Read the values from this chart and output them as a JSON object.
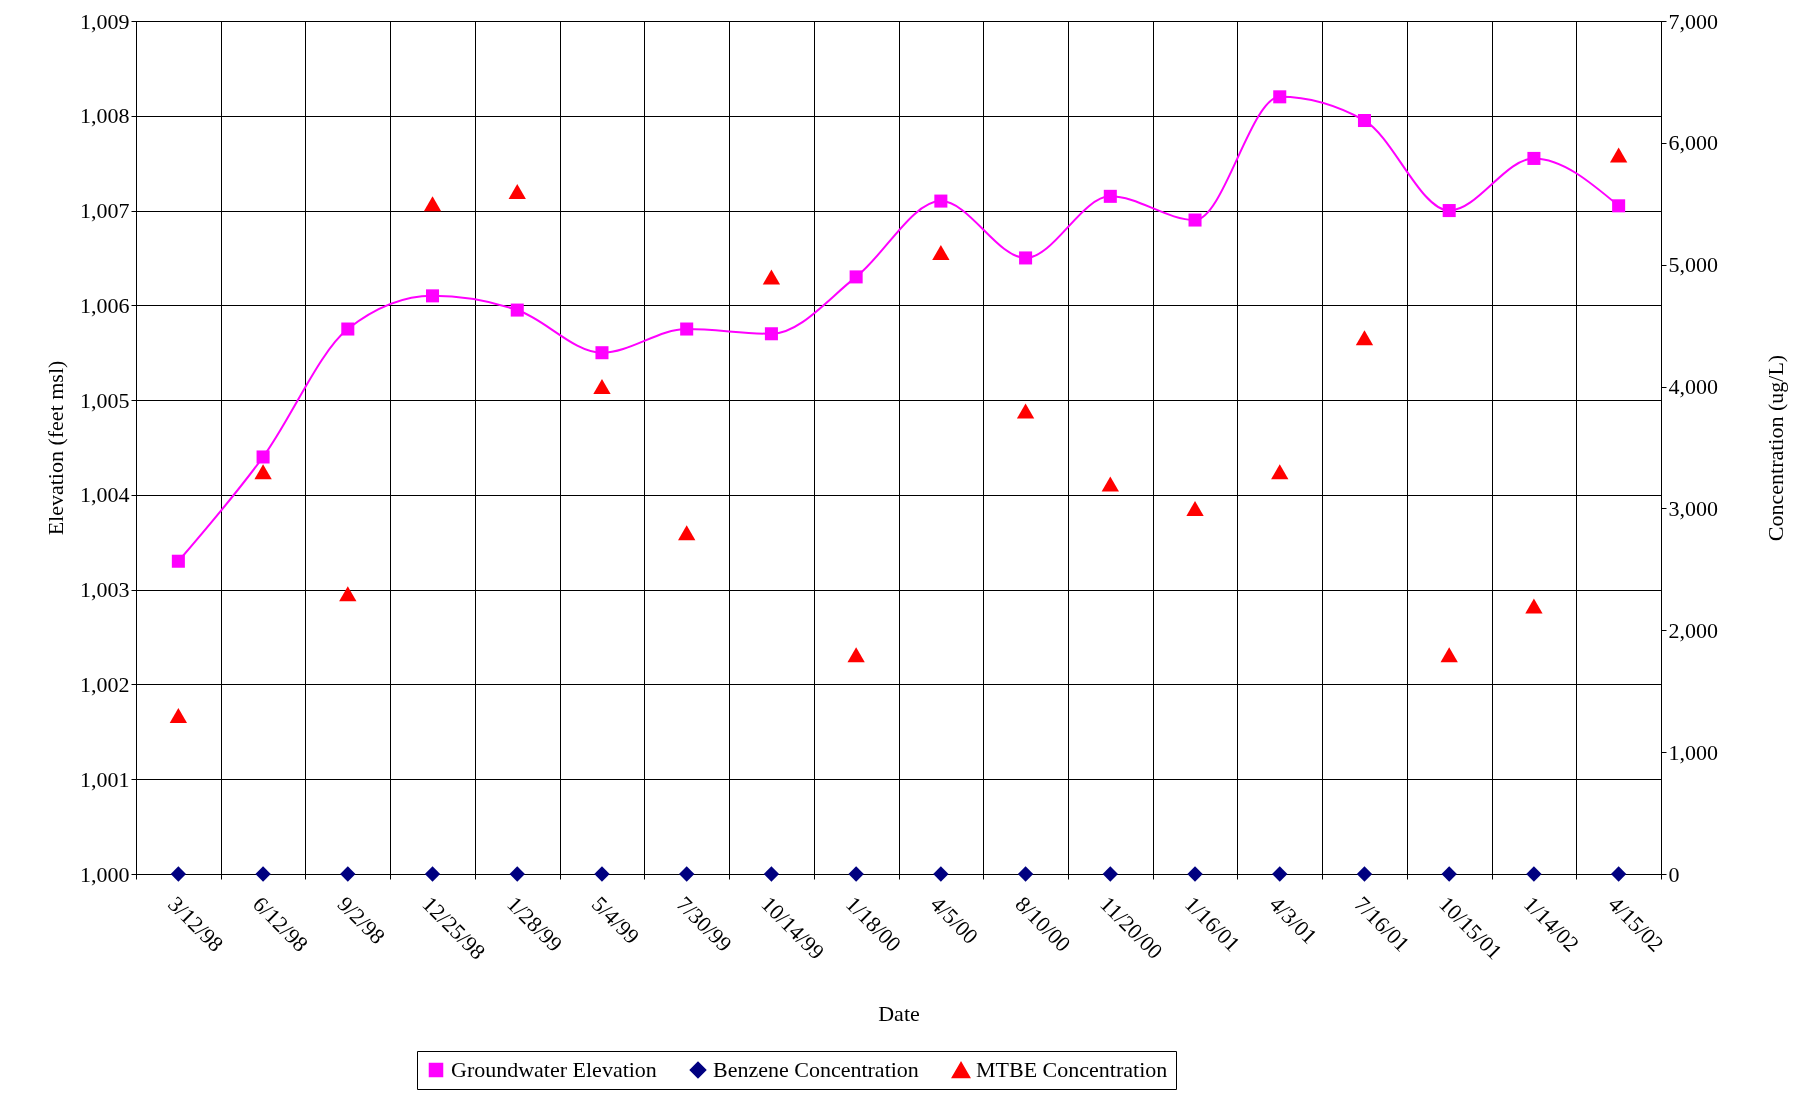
{
  "chart_data": {
    "type": "line",
    "xlabel": "Date",
    "ylabel": "Elevation (feet msl)",
    "y2label": "Concentration (ug/L)",
    "categories": [
      "3/12/98",
      "6/12/98",
      "9/2/98",
      "12/25/98",
      "1/28/99",
      "5/4/99",
      "7/30/99",
      "10/14/99",
      "1/18/00",
      "4/5/00",
      "8/10/00",
      "11/20/00",
      "1/16/01",
      "4/3/01",
      "7/16/01",
      "10/15/01",
      "1/14/02",
      "4/15/02"
    ],
    "series": [
      {
        "name": "Groundwater Elevation",
        "type": "line",
        "marker": "square",
        "color": "#ff00ff",
        "values": [
          1003.3,
          1004.4,
          1005.75,
          1006.1,
          1005.95,
          1005.5,
          1005.75,
          1005.7,
          1006.3,
          1007.1,
          1006.5,
          1007.15,
          1006.9,
          1008.2,
          1007.95,
          1007.0,
          1007.55,
          1007.05
        ]
      },
      {
        "name": "Benzene Concentration",
        "type": "scatter",
        "marker": "diamond",
        "axis": "y2",
        "color": "#000080",
        "values": [
          0,
          0,
          0,
          0,
          0,
          0,
          0,
          0,
          0,
          0,
          0,
          0,
          0,
          0,
          0,
          0,
          0,
          0
        ]
      },
      {
        "name": "MTBE Concentration",
        "type": "scatter",
        "marker": "triangle",
        "axis": "y2",
        "color": "#ff0000",
        "values": [
          1300,
          3300,
          2300,
          5500,
          5600,
          4000,
          2800,
          4900,
          1800,
          5100,
          3800,
          3200,
          3000,
          3300,
          4400,
          1800,
          2200,
          5900
        ]
      }
    ],
    "ylim": [
      1000,
      1009
    ],
    "yticks": [
      {
        "value": 1000,
        "label": "1,000"
      },
      {
        "value": 1001,
        "label": "1,001"
      },
      {
        "value": 1002,
        "label": "1,002"
      },
      {
        "value": 1003,
        "label": "1,003"
      },
      {
        "value": 1004,
        "label": "1,004"
      },
      {
        "value": 1005,
        "label": "1,005"
      },
      {
        "value": 1006,
        "label": "1,006"
      },
      {
        "value": 1007,
        "label": "1,007"
      },
      {
        "value": 1008,
        "label": "1,008"
      },
      {
        "value": 1009,
        "label": "1,009"
      }
    ],
    "y2lim": [
      0,
      7000
    ],
    "y2ticks": [
      0,
      {
        "value": 1000,
        "label": "1,000"
      },
      {
        "value": 2000,
        "label": "2,000"
      },
      {
        "value": 3000,
        "label": "3,000"
      },
      {
        "value": 4000,
        "label": "4,000"
      },
      {
        "value": 5000,
        "label": "5,000"
      },
      {
        "value": 6000,
        "label": "6,000"
      },
      {
        "value": 7000,
        "label": "7,000"
      }
    ],
    "grid": true,
    "legend": "bottom"
  }
}
